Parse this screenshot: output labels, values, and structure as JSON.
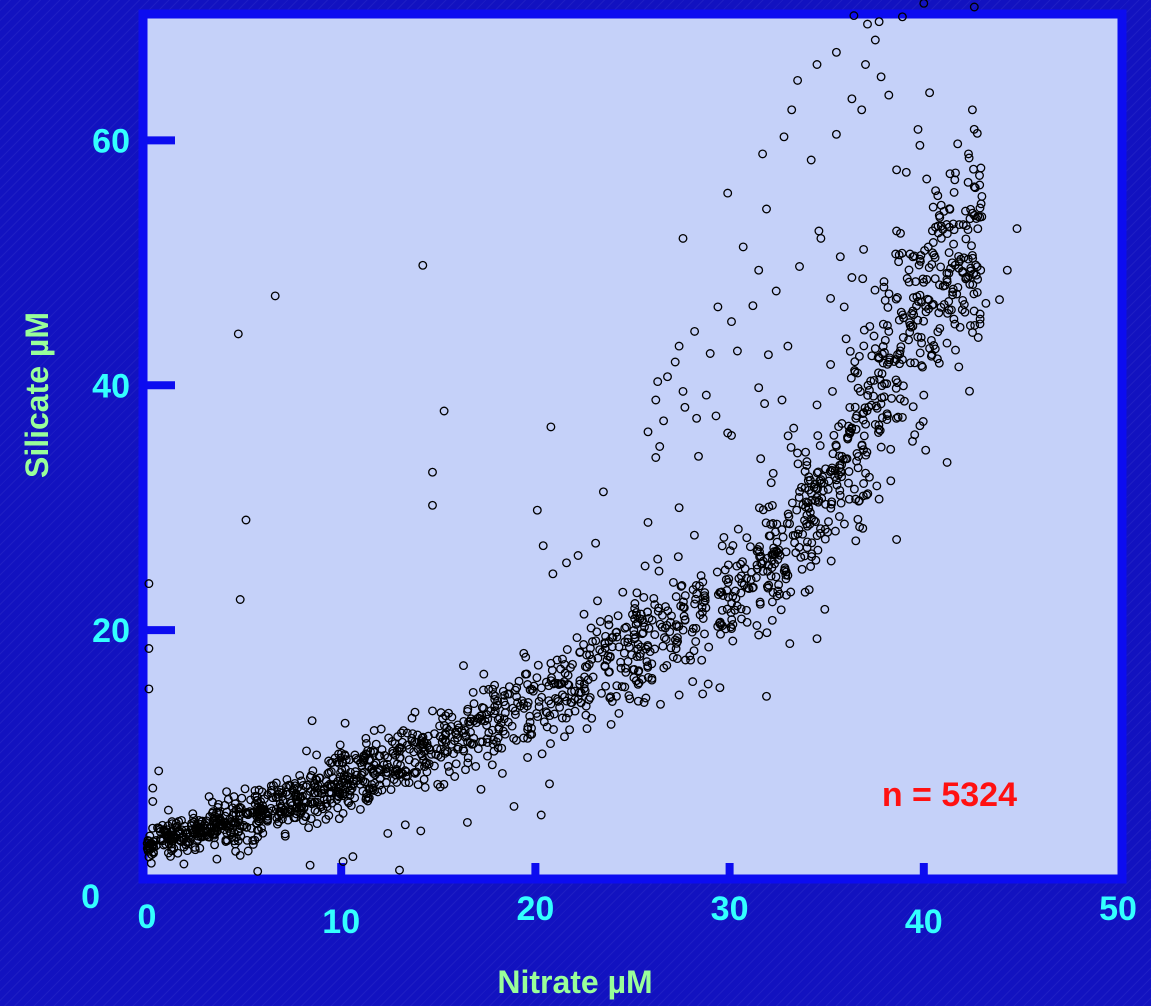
{
  "chart_data": {
    "type": "scatter",
    "xlabel": "Nitrate µM",
    "ylabel": "Silicate µM",
    "xlim": [
      0,
      50
    ],
    "ylim": [
      0,
      70
    ],
    "x_ticks": [
      0,
      10,
      20,
      30,
      40,
      50
    ],
    "y_ticks": [
      0,
      20,
      40,
      60
    ],
    "annotation": "n = 5324",
    "n": 5324,
    "grid": false,
    "legend": "none",
    "colors": {
      "background": "#1212c0",
      "plot_area": "#c5d1f9",
      "frame": "#0c0cf0",
      "marker": "#000000",
      "tick_label": "#33ffff",
      "axis_title": "#99ff99",
      "annotation": "#ff1111"
    },
    "series": [
      {
        "marker": "open-circle",
        "trend_centerline": [
          [
            0,
            2.5
          ],
          [
            5,
            4.5
          ],
          [
            10,
            7.5
          ],
          [
            15,
            10.5
          ],
          [
            20,
            14
          ],
          [
            25,
            18.5
          ],
          [
            30,
            23
          ],
          [
            33,
            27.5
          ],
          [
            36,
            33
          ],
          [
            38,
            39
          ],
          [
            40,
            45
          ],
          [
            42,
            50
          ]
        ],
        "points": [
          [
            4.7,
            44.2
          ],
          [
            6.6,
            47.3
          ],
          [
            14.2,
            49.8
          ],
          [
            15.3,
            37.9
          ],
          [
            14.7,
            32.9
          ],
          [
            14.7,
            30.2
          ],
          [
            5.1,
            29
          ],
          [
            4.8,
            22.5
          ],
          [
            20.8,
            36.6
          ],
          [
            23.5,
            31.3
          ],
          [
            20.1,
            29.8
          ],
          [
            20.4,
            26.9
          ],
          [
            21.6,
            25.5
          ],
          [
            22.2,
            26.1
          ],
          [
            20.9,
            24.6
          ],
          [
            23.1,
            27.1
          ],
          [
            27.6,
            52
          ],
          [
            29.9,
            55.7
          ],
          [
            30.7,
            51.3
          ],
          [
            31.7,
            58.9
          ],
          [
            32.8,
            60.3
          ],
          [
            33.2,
            62.5
          ],
          [
            33.5,
            64.9
          ],
          [
            34.5,
            66.2
          ],
          [
            35.5,
            67.2
          ],
          [
            37,
            66.2
          ],
          [
            37.5,
            68.2
          ],
          [
            37.8,
            65.2
          ],
          [
            38.2,
            63.7
          ],
          [
            36.3,
            63.4
          ],
          [
            34.2,
            58.4
          ],
          [
            35.5,
            60.5
          ],
          [
            36.8,
            62.5
          ],
          [
            38.6,
            57.6
          ],
          [
            39.8,
            59.6
          ],
          [
            40.3,
            63.9
          ],
          [
            39.7,
            60.9
          ],
          [
            39.1,
            57.4
          ],
          [
            36.4,
            70.2
          ],
          [
            37.1,
            69.5
          ],
          [
            37.7,
            69.7
          ],
          [
            38.9,
            70.1
          ],
          [
            40,
            71.2
          ],
          [
            42.6,
            70.9
          ],
          [
            42.5,
            62.5
          ],
          [
            42.3,
            58.9
          ],
          [
            44.8,
            52.8
          ],
          [
            44.3,
            49.4
          ],
          [
            43.9,
            47
          ],
          [
            40.9,
            53
          ],
          [
            39.8,
            50.3
          ],
          [
            41,
            48.1
          ],
          [
            31.9,
            54.4
          ],
          [
            31.5,
            49.4
          ],
          [
            32.4,
            47.7
          ],
          [
            33.6,
            49.7
          ],
          [
            34.7,
            52
          ],
          [
            35.7,
            50.5
          ],
          [
            36.9,
            51.1
          ],
          [
            38.6,
            52.6
          ],
          [
            36.3,
            48.8
          ],
          [
            35.9,
            46.4
          ],
          [
            35.2,
            47.1
          ],
          [
            34.6,
            52.6
          ],
          [
            29.4,
            46.4
          ],
          [
            30.1,
            45.2
          ],
          [
            31.2,
            46.5
          ],
          [
            27.4,
            43.2
          ],
          [
            28.2,
            44.4
          ],
          [
            29,
            42.6
          ],
          [
            27.2,
            41.9
          ],
          [
            26.3,
            40.3
          ],
          [
            26.8,
            40.7
          ],
          [
            28.8,
            39.2
          ],
          [
            27.6,
            39.5
          ],
          [
            26.2,
            38.8
          ],
          [
            26.6,
            37.1
          ],
          [
            27.7,
            38.2
          ],
          [
            28.3,
            37.3
          ],
          [
            29.3,
            37.5
          ],
          [
            25.8,
            36.2
          ],
          [
            26.4,
            35
          ],
          [
            26.2,
            34.1
          ],
          [
            28.4,
            34.2
          ],
          [
            29.9,
            36.1
          ],
          [
            31.8,
            38.5
          ],
          [
            32.7,
            38.8
          ],
          [
            33.3,
            36.5
          ],
          [
            34.5,
            38.4
          ],
          [
            35.3,
            39.5
          ],
          [
            35.2,
            41.7
          ],
          [
            36,
            43.8
          ],
          [
            33,
            43.2
          ],
          [
            32,
            42.5
          ],
          [
            30.4,
            42.8
          ],
          [
            31.5,
            39.8
          ],
          [
            30.1,
            35.9
          ],
          [
            31.6,
            34
          ],
          [
            40,
            39.2
          ],
          [
            39.8,
            36.7
          ],
          [
            40.1,
            34.7
          ],
          [
            41.2,
            33.7
          ],
          [
            39,
            38.7
          ],
          [
            38.1,
            37.2
          ],
          [
            36.5,
            37.3
          ],
          [
            37.2,
            39.6
          ],
          [
            41.6,
            45
          ],
          [
            43.2,
            46.7
          ],
          [
            42.8,
            43.9
          ],
          [
            41.8,
            41.5
          ],
          [
            40.8,
            41.8
          ],
          [
            37.5,
            43
          ],
          [
            38.2,
            44.4
          ],
          [
            39.3,
            44.9
          ],
          [
            34.9,
            21.7
          ],
          [
            34.5,
            19.3
          ],
          [
            34.1,
            23.3
          ],
          [
            32.2,
            20.8
          ],
          [
            33.1,
            18.9
          ],
          [
            31.5,
            19.6
          ],
          [
            29.8,
            20.1
          ],
          [
            29.5,
            15.3
          ],
          [
            28.9,
            15.6
          ],
          [
            28.1,
            15.8
          ],
          [
            31.9,
            14.6
          ],
          [
            27.4,
            14.7
          ],
          [
            25.3,
            14.2
          ],
          [
            24.3,
            13.2
          ],
          [
            23.9,
            12.3
          ],
          [
            22.9,
            12.8
          ],
          [
            21.5,
            11.3
          ],
          [
            20.6,
            12.1
          ],
          [
            19.6,
            9.6
          ],
          [
            18.3,
            8.3
          ],
          [
            18.9,
            5.6
          ],
          [
            20.3,
            4.9
          ],
          [
            17.2,
            7
          ],
          [
            16.4,
            8.6
          ],
          [
            15.1,
            7.2
          ],
          [
            14.8,
            8.9
          ],
          [
            13.1,
            11.6
          ],
          [
            13.8,
            13.3
          ],
          [
            14.7,
            13.4
          ],
          [
            15.7,
            12.9
          ],
          [
            17.9,
            15.5
          ],
          [
            16.3,
            17.1
          ],
          [
            19.5,
            17.8
          ],
          [
            22.5,
            21.3
          ],
          [
            23.2,
            22.4
          ],
          [
            24.5,
            23.1
          ],
          [
            26.3,
            25.8
          ],
          [
            25.8,
            28.8
          ],
          [
            27.4,
            30
          ],
          [
            30.3,
            23.2
          ],
          [
            36.5,
            27.3
          ],
          [
            37.7,
            30.7
          ],
          [
            38.3,
            32.2
          ],
          [
            38.6,
            27.4
          ],
          [
            10.2,
            12.4
          ],
          [
            11.7,
            11.8
          ],
          [
            8.5,
            12.6
          ],
          [
            13.4,
            10.6
          ],
          [
            11.5,
            9.4
          ],
          [
            12.8,
            8.2
          ],
          [
            9.9,
            4.6
          ],
          [
            12.4,
            3.4
          ],
          [
            13.3,
            4.1
          ],
          [
            14.1,
            3.6
          ],
          [
            7.5,
            6.9
          ],
          [
            6.2,
            4.5
          ],
          [
            5.7,
            3.1
          ],
          [
            2.7,
            3.9
          ],
          [
            3.2,
            6.4
          ],
          [
            4.1,
            6.8
          ],
          [
            1.1,
            5.3
          ],
          [
            0.3,
            7.1
          ],
          [
            0.3,
            6
          ],
          [
            0.6,
            8.5
          ],
          [
            0.1,
            18.5
          ],
          [
            0.1,
            23.8
          ],
          [
            0.1,
            15.2
          ],
          [
            10.1,
            1.1
          ],
          [
            10.6,
            1.5
          ],
          [
            13,
            0.4
          ],
          [
            5.7,
            0.3
          ],
          [
            4.8,
            1.6
          ],
          [
            1.9,
            0.9
          ],
          [
            3.6,
            1.3
          ],
          [
            8.4,
            0.8
          ],
          [
            16.5,
            4.3
          ]
        ]
      }
    ]
  }
}
